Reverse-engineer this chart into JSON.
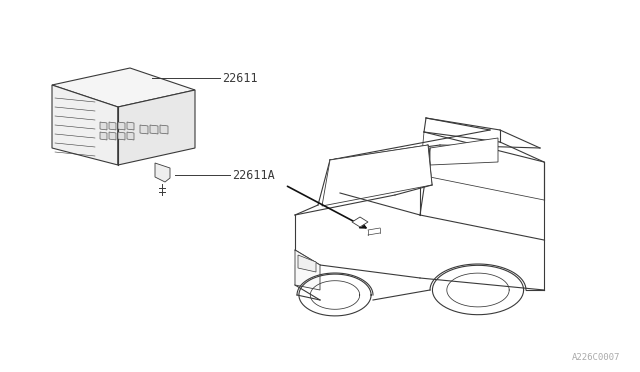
{
  "background_color": "#ffffff",
  "line_color": "#3a3a3a",
  "label_22611": "22611",
  "label_22611A": "22611A",
  "ref_code": "A226C0007",
  "fontsize_label": 8.5,
  "fontsize_ref": 6.5
}
